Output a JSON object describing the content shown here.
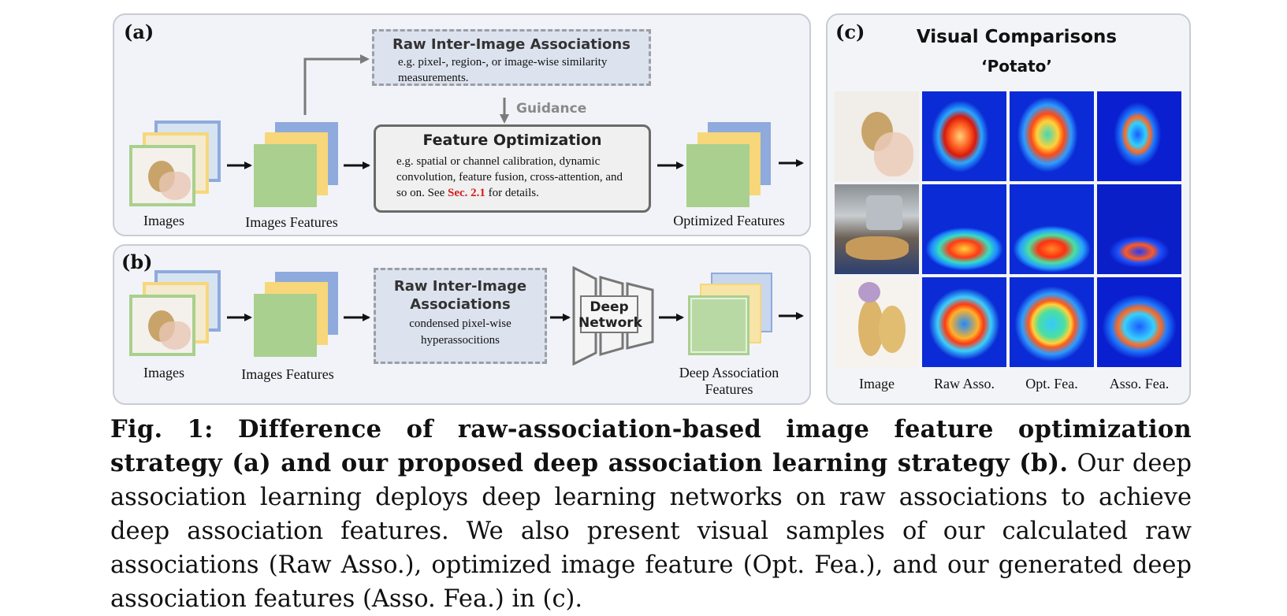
{
  "panel_a": {
    "label": "(a)",
    "raw_box": {
      "title": "Raw Inter-Image Associations",
      "text": "e.g. pixel-, region-, or image-wise similarity measurements."
    },
    "guidance": "Guidance",
    "fo_box": {
      "title": "Feature Optimization",
      "text_pre": "e.g. spatial or channel calibration, dynamic convolution, feature fusion, cross-attention, and so on. See ",
      "ref": "Sec. 2.1",
      "text_post": " for details."
    },
    "labels": {
      "images": "Images",
      "images_features": "Images Features",
      "optimized_features": "Optimized Features"
    }
  },
  "panel_b": {
    "label": "(b)",
    "raw_box": {
      "title_line1": "Raw Inter-Image",
      "title_line2": "Associations",
      "text_line1": "condensed pixel-wise",
      "text_line2": "hyperassocitions"
    },
    "network": {
      "line1": "Deep",
      "line2": "Network"
    },
    "labels": {
      "images": "Images",
      "images_features": "Images Features",
      "deep_assoc_line1": "Deep Association",
      "deep_assoc_line2": "Features"
    }
  },
  "panel_c": {
    "label": "(c)",
    "title": "Visual Comparisons",
    "subtitle": "‘Potato’",
    "columns": [
      "Image",
      "Raw Asso.",
      "Opt. Fea.",
      "Asso. Fea."
    ]
  },
  "caption": {
    "bold": "Fig. 1: Difference of raw-association-based image feature optimization strategy (a) and our proposed deep association learning strategy (b).",
    "rest": " Our deep association learning deploys deep learning networks on raw associations to achieve deep association features. We also present visual samples of our calculated raw associations (Raw Asso.), optimized image feature (Opt. Fea.), and our generated deep association features (Asso. Fea.) in (c)."
  },
  "colors": {
    "green": "#a9d08e",
    "yellow": "#f7d77a",
    "blue": "#8faadc",
    "red_ref": "#d81b1b"
  }
}
